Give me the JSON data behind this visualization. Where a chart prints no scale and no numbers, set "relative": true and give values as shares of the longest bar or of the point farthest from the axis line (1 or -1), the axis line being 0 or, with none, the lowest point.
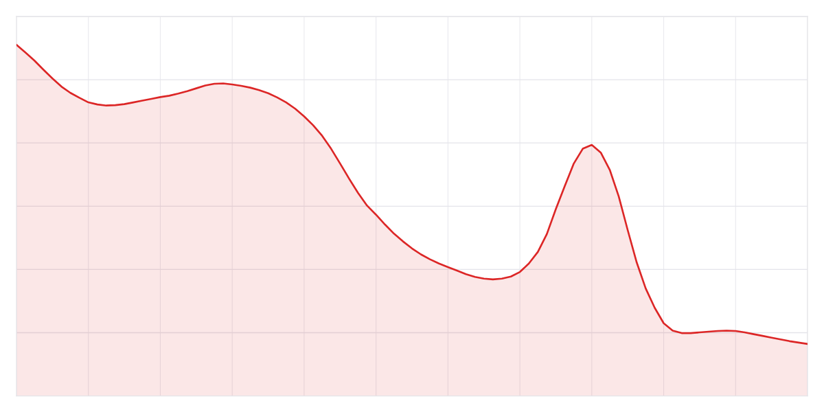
{
  "chart_data": {
    "type": "area",
    "relative": true,
    "grid": true,
    "line_style": "solid",
    "categories": [
      null,
      null,
      null,
      null,
      null,
      null,
      null,
      null,
      null,
      null,
      null,
      null,
      null,
      null,
      null,
      null,
      null,
      null,
      null,
      null,
      null,
      null,
      null,
      null,
      null,
      null,
      null,
      null,
      null,
      null,
      null,
      null,
      null,
      null,
      null,
      null,
      null,
      null,
      null,
      null,
      null,
      null,
      null,
      null,
      null,
      null,
      null,
      null,
      null,
      null,
      null,
      null,
      null,
      null,
      null,
      null,
      null,
      null,
      null,
      null,
      null,
      null,
      null,
      null,
      null,
      null,
      null,
      null,
      null,
      null,
      null,
      null,
      null,
      null,
      null,
      null,
      null,
      null,
      null,
      null,
      null,
      null,
      null,
      null,
      null,
      null,
      null,
      null,
      null
    ],
    "series": [
      {
        "color": "#dc2626",
        "values": [
          1.0,
          0.978,
          0.955,
          0.929,
          0.904,
          0.881,
          0.863,
          0.849,
          0.836,
          0.83,
          0.827,
          0.828,
          0.831,
          0.836,
          0.841,
          0.846,
          0.851,
          0.855,
          0.861,
          0.868,
          0.876,
          0.884,
          0.889,
          0.89,
          0.887,
          0.883,
          0.878,
          0.871,
          0.862,
          0.85,
          0.836,
          0.818,
          0.796,
          0.771,
          0.741,
          0.704,
          0.662,
          0.619,
          0.578,
          0.542,
          0.516,
          0.488,
          0.462,
          0.44,
          0.42,
          0.403,
          0.389,
          0.377,
          0.367,
          0.357,
          0.347,
          0.339,
          0.334,
          0.332,
          0.334,
          0.34,
          0.353,
          0.377,
          0.41,
          0.461,
          0.532,
          0.598,
          0.662,
          0.704,
          0.715,
          0.693,
          0.644,
          0.568,
          0.472,
          0.38,
          0.306,
          0.251,
          0.207,
          0.186,
          0.179,
          0.179,
          0.181,
          0.183,
          0.185,
          0.186,
          0.185,
          0.181,
          0.176,
          0.171,
          0.166,
          0.161,
          0.156,
          0.152,
          0.148
        ]
      }
    ]
  }
}
